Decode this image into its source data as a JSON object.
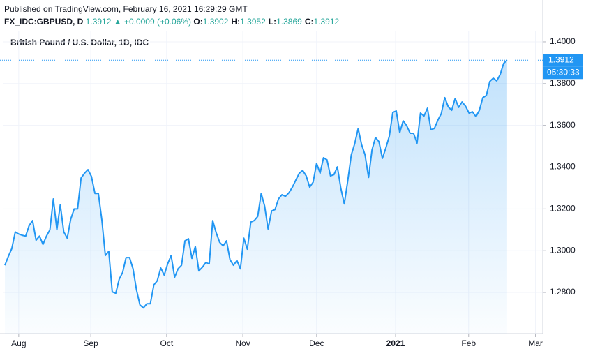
{
  "header": {
    "published": "Published on TradingView.com, February 16, 2021 16:29:29 GMT",
    "symbol": "FX_IDC:GBPUSD, D",
    "price": "1.3912",
    "change": "▲ +0.0009 (+0.06%)",
    "ohlc": [
      {
        "label": "O:",
        "value": "1.3902"
      },
      {
        "label": "H:",
        "value": "1.3952"
      },
      {
        "label": "L:",
        "value": "1.3869"
      },
      {
        "label": "C:",
        "value": "1.3912"
      }
    ]
  },
  "chart_data": {
    "type": "area",
    "title": "British Pound / U.S. Dollar, 1D, IDC",
    "countdown": "05:30:33",
    "color": "#2196f3",
    "grid": true,
    "ylim": [
      1.2603,
      1.405
    ],
    "yticks": [
      {
        "value": 1.28,
        "label": "1.2800"
      },
      {
        "value": 1.3,
        "label": "1.3000"
      },
      {
        "value": 1.32,
        "label": "1.3200"
      },
      {
        "value": 1.34,
        "label": "1.3400"
      },
      {
        "value": 1.36,
        "label": "1.3600"
      },
      {
        "value": 1.38,
        "label": "1.3800"
      },
      {
        "value": 1.4,
        "label": "1.4000"
      }
    ],
    "xlim": [
      -0.4,
      155.3
    ],
    "xticks": [
      {
        "value": 4.0,
        "label": "Aug"
      },
      {
        "value": 24.8,
        "label": "Sep"
      },
      {
        "value": 46.7,
        "label": "Oct"
      },
      {
        "value": 68.7,
        "label": "Nov"
      },
      {
        "value": 90.0,
        "label": "Dec"
      },
      {
        "value": 112.8,
        "label": "2021"
      },
      {
        "value": 133.9,
        "label": "Feb"
      },
      {
        "value": 153.2,
        "label": "Mar"
      }
    ],
    "values": [
      1.293,
      1.2973,
      1.301,
      1.309,
      1.308,
      1.3074,
      1.307,
      1.312,
      1.3144,
      1.305,
      1.307,
      1.303,
      1.307,
      1.31,
      1.3248,
      1.31,
      1.322,
      1.309,
      1.306,
      1.315,
      1.32,
      1.32,
      1.3348,
      1.3371,
      1.3388,
      1.3355,
      1.3274,
      1.3274,
      1.3147,
      1.2977,
      1.2997,
      1.2803,
      1.2796,
      1.2863,
      1.2896,
      1.2967,
      1.2967,
      1.2913,
      1.2813,
      1.274,
      1.2726,
      1.2746,
      1.2746,
      1.2836,
      1.2856,
      1.2917,
      1.2883,
      1.2937,
      1.2977,
      1.2873,
      1.2913,
      1.293,
      1.3047,
      1.3057,
      1.2963,
      1.302,
      1.2903,
      1.292,
      1.2943,
      1.2937,
      1.3144,
      1.3087,
      1.304,
      1.3023,
      1.3047,
      1.2957,
      1.293,
      1.2953,
      1.2913,
      1.306,
      1.3007,
      1.3137,
      1.3144,
      1.3164,
      1.3274,
      1.3214,
      1.3104,
      1.319,
      1.3197,
      1.3248,
      1.3268,
      1.326,
      1.3277,
      1.3304,
      1.3338,
      1.3371,
      1.3384,
      1.3358,
      1.3304,
      1.3328,
      1.3418,
      1.3371,
      1.3445,
      1.3435,
      1.3358,
      1.3364,
      1.3401,
      1.3298,
      1.3224,
      1.3335,
      1.3458,
      1.3512,
      1.3585,
      1.3508,
      1.3458,
      1.3351,
      1.3482,
      1.3542,
      1.3522,
      1.3442,
      1.3492,
      1.3549,
      1.3662,
      1.3669,
      1.3565,
      1.3622,
      1.3599,
      1.3562,
      1.3562,
      1.3515,
      1.3659,
      1.3645,
      1.3682,
      1.3579,
      1.3585,
      1.3625,
      1.3656,
      1.3733,
      1.3689,
      1.3672,
      1.3729,
      1.3686,
      1.3712,
      1.3692,
      1.3659,
      1.3665,
      1.3642,
      1.3672,
      1.3733,
      1.3743,
      1.381,
      1.3826,
      1.3813,
      1.3843,
      1.3897,
      1.3912
    ]
  }
}
